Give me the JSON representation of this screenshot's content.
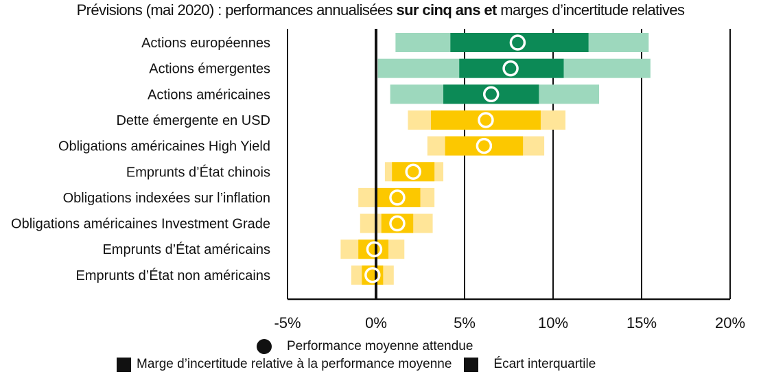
{
  "title": {
    "part1": "Prévisions (mai 2020) : performances annualisées ",
    "bold": "sur cinq ans et",
    "part2": " marges d’incertitude relatives"
  },
  "legend": {
    "mean": "Performance moyenne attendue",
    "range": "Marge d’incertitude relative à la performance moyenne",
    "iqr": "Écart interquartile"
  },
  "colors": {
    "equity_light": "#9dd8bd",
    "equity_dark": "#0c8a56",
    "bond_light": "#ffe598",
    "bond_dark": "#fcc800",
    "marker_stroke": "#ffffff",
    "axis": "#111111"
  },
  "chart_data": {
    "type": "range-bar",
    "x_axis": {
      "min": -5,
      "max": 20,
      "ticks": [
        "-5%",
        "0%",
        "5%",
        "10%",
        "15%",
        "20%"
      ],
      "tick_values": [
        -5,
        0,
        5,
        10,
        15,
        20
      ]
    },
    "grid": true,
    "rows": [
      {
        "label": "Actions européennes",
        "group": "equity",
        "low": 1.1,
        "q1": 4.2,
        "q3": 12.0,
        "high": 15.4,
        "mean": 8.0
      },
      {
        "label": "Actions émergentes",
        "group": "equity",
        "low": 0.1,
        "q1": 4.7,
        "q3": 10.6,
        "high": 15.5,
        "mean": 7.6
      },
      {
        "label": "Actions américaines",
        "group": "equity",
        "low": 0.8,
        "q1": 3.8,
        "q3": 9.2,
        "high": 12.6,
        "mean": 6.5
      },
      {
        "label": "Dette émergente en USD",
        "group": "bond",
        "low": 1.8,
        "q1": 3.1,
        "q3": 9.3,
        "high": 10.7,
        "mean": 6.2
      },
      {
        "label": "Obligations américaines High Yield",
        "group": "bond",
        "low": 2.9,
        "q1": 3.9,
        "q3": 8.3,
        "high": 9.5,
        "mean": 6.1
      },
      {
        "label": "Emprunts d’État chinois",
        "group": "bond",
        "low": 0.5,
        "q1": 0.9,
        "q3": 3.3,
        "high": 3.8,
        "mean": 2.1
      },
      {
        "label": "Obligations indexées sur l’inflation",
        "group": "bond",
        "low": -1.0,
        "q1": 0.0,
        "q3": 2.5,
        "high": 3.3,
        "mean": 1.2
      },
      {
        "label": "Obligations américaines Investment Grade",
        "group": "bond",
        "low": -0.9,
        "q1": 0.3,
        "q3": 2.1,
        "high": 3.2,
        "mean": 1.2
      },
      {
        "label": "Emprunts d’État américains",
        "group": "bond",
        "low": -2.0,
        "q1": -1.0,
        "q3": 0.7,
        "high": 1.6,
        "mean": -0.1
      },
      {
        "label": "Emprunts d’État non américains",
        "group": "bond",
        "low": -1.4,
        "q1": -0.8,
        "q3": 0.4,
        "high": 1.0,
        "mean": -0.2
      }
    ]
  }
}
